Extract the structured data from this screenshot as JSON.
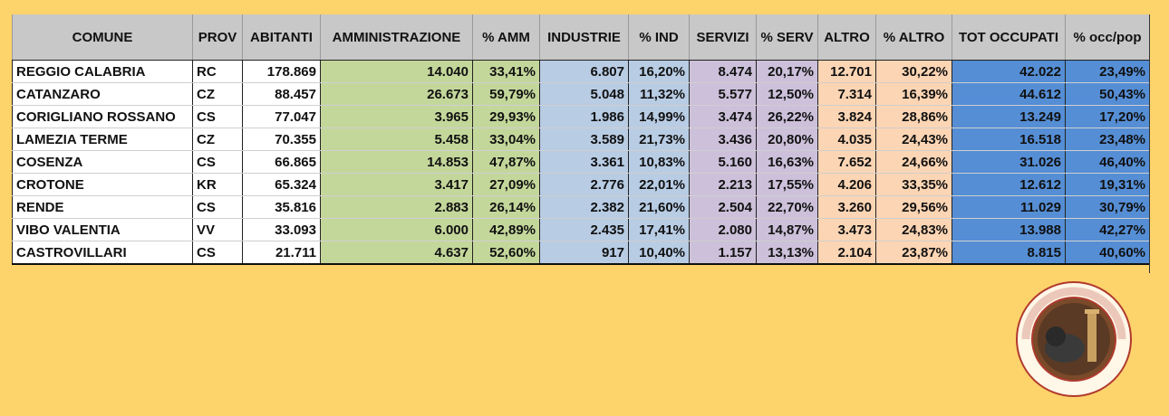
{
  "table": {
    "headers": [
      "COMUNE",
      "PROV",
      "ABITANTI",
      "AMMINISTRAZIONE",
      "% AMM",
      "INDUSTRIE",
      "% IND",
      "SERVIZI",
      "% SERV",
      "ALTRO",
      "% ALTRO",
      "TOT OCCUPATI",
      "% occ/pop"
    ],
    "rows": [
      [
        "REGGIO CALABRIA",
        "RC",
        "178.869",
        "14.040",
        "33,41%",
        "6.807",
        "16,20%",
        "8.474",
        "20,17%",
        "12.701",
        "30,22%",
        "42.022",
        "23,49%"
      ],
      [
        "CATANZARO",
        "CZ",
        "88.457",
        "26.673",
        "59,79%",
        "5.048",
        "11,32%",
        "5.577",
        "12,50%",
        "7.314",
        "16,39%",
        "44.612",
        "50,43%"
      ],
      [
        "CORIGLIANO ROSSANO",
        "CS",
        "77.047",
        "3.965",
        "29,93%",
        "1.986",
        "14,99%",
        "3.474",
        "26,22%",
        "3.824",
        "28,86%",
        "13.249",
        "17,20%"
      ],
      [
        "LAMEZIA TERME",
        "CZ",
        "70.355",
        "5.458",
        "33,04%",
        "3.589",
        "21,73%",
        "3.436",
        "20,80%",
        "4.035",
        "24,43%",
        "16.518",
        "23,48%"
      ],
      [
        "COSENZA",
        "CS",
        "66.865",
        "14.853",
        "47,87%",
        "3.361",
        "10,83%",
        "5.160",
        "16,63%",
        "7.652",
        "24,66%",
        "31.026",
        "46,40%"
      ],
      [
        "CROTONE",
        "KR",
        "65.324",
        "3.417",
        "27,09%",
        "2.776",
        "22,01%",
        "2.213",
        "17,55%",
        "4.206",
        "33,35%",
        "12.612",
        "19,31%"
      ],
      [
        "RENDE",
        "CS",
        "35.816",
        "2.883",
        "26,14%",
        "2.382",
        "21,60%",
        "2.504",
        "22,70%",
        "3.260",
        "29,56%",
        "11.029",
        "30,79%"
      ],
      [
        "VIBO VALENTIA",
        "VV",
        "33.093",
        "6.000",
        "42,89%",
        "2.435",
        "17,41%",
        "2.080",
        "14,87%",
        "3.473",
        "24,83%",
        "13.988",
        "42,27%"
      ],
      [
        "CASTROVILLARI",
        "CS",
        "21.711",
        "4.637",
        "52,60%",
        "917",
        "10,40%",
        "1.157",
        "13,13%",
        "2.104",
        "23,87%",
        "8.815",
        "40,60%"
      ]
    ]
  },
  "logo": {
    "text": "MAGNA GRECIA - COMITATO - PROVINCIA DELLA",
    "icon": "lion-column-seal-icon",
    "ring_color": "#c0392b"
  }
}
